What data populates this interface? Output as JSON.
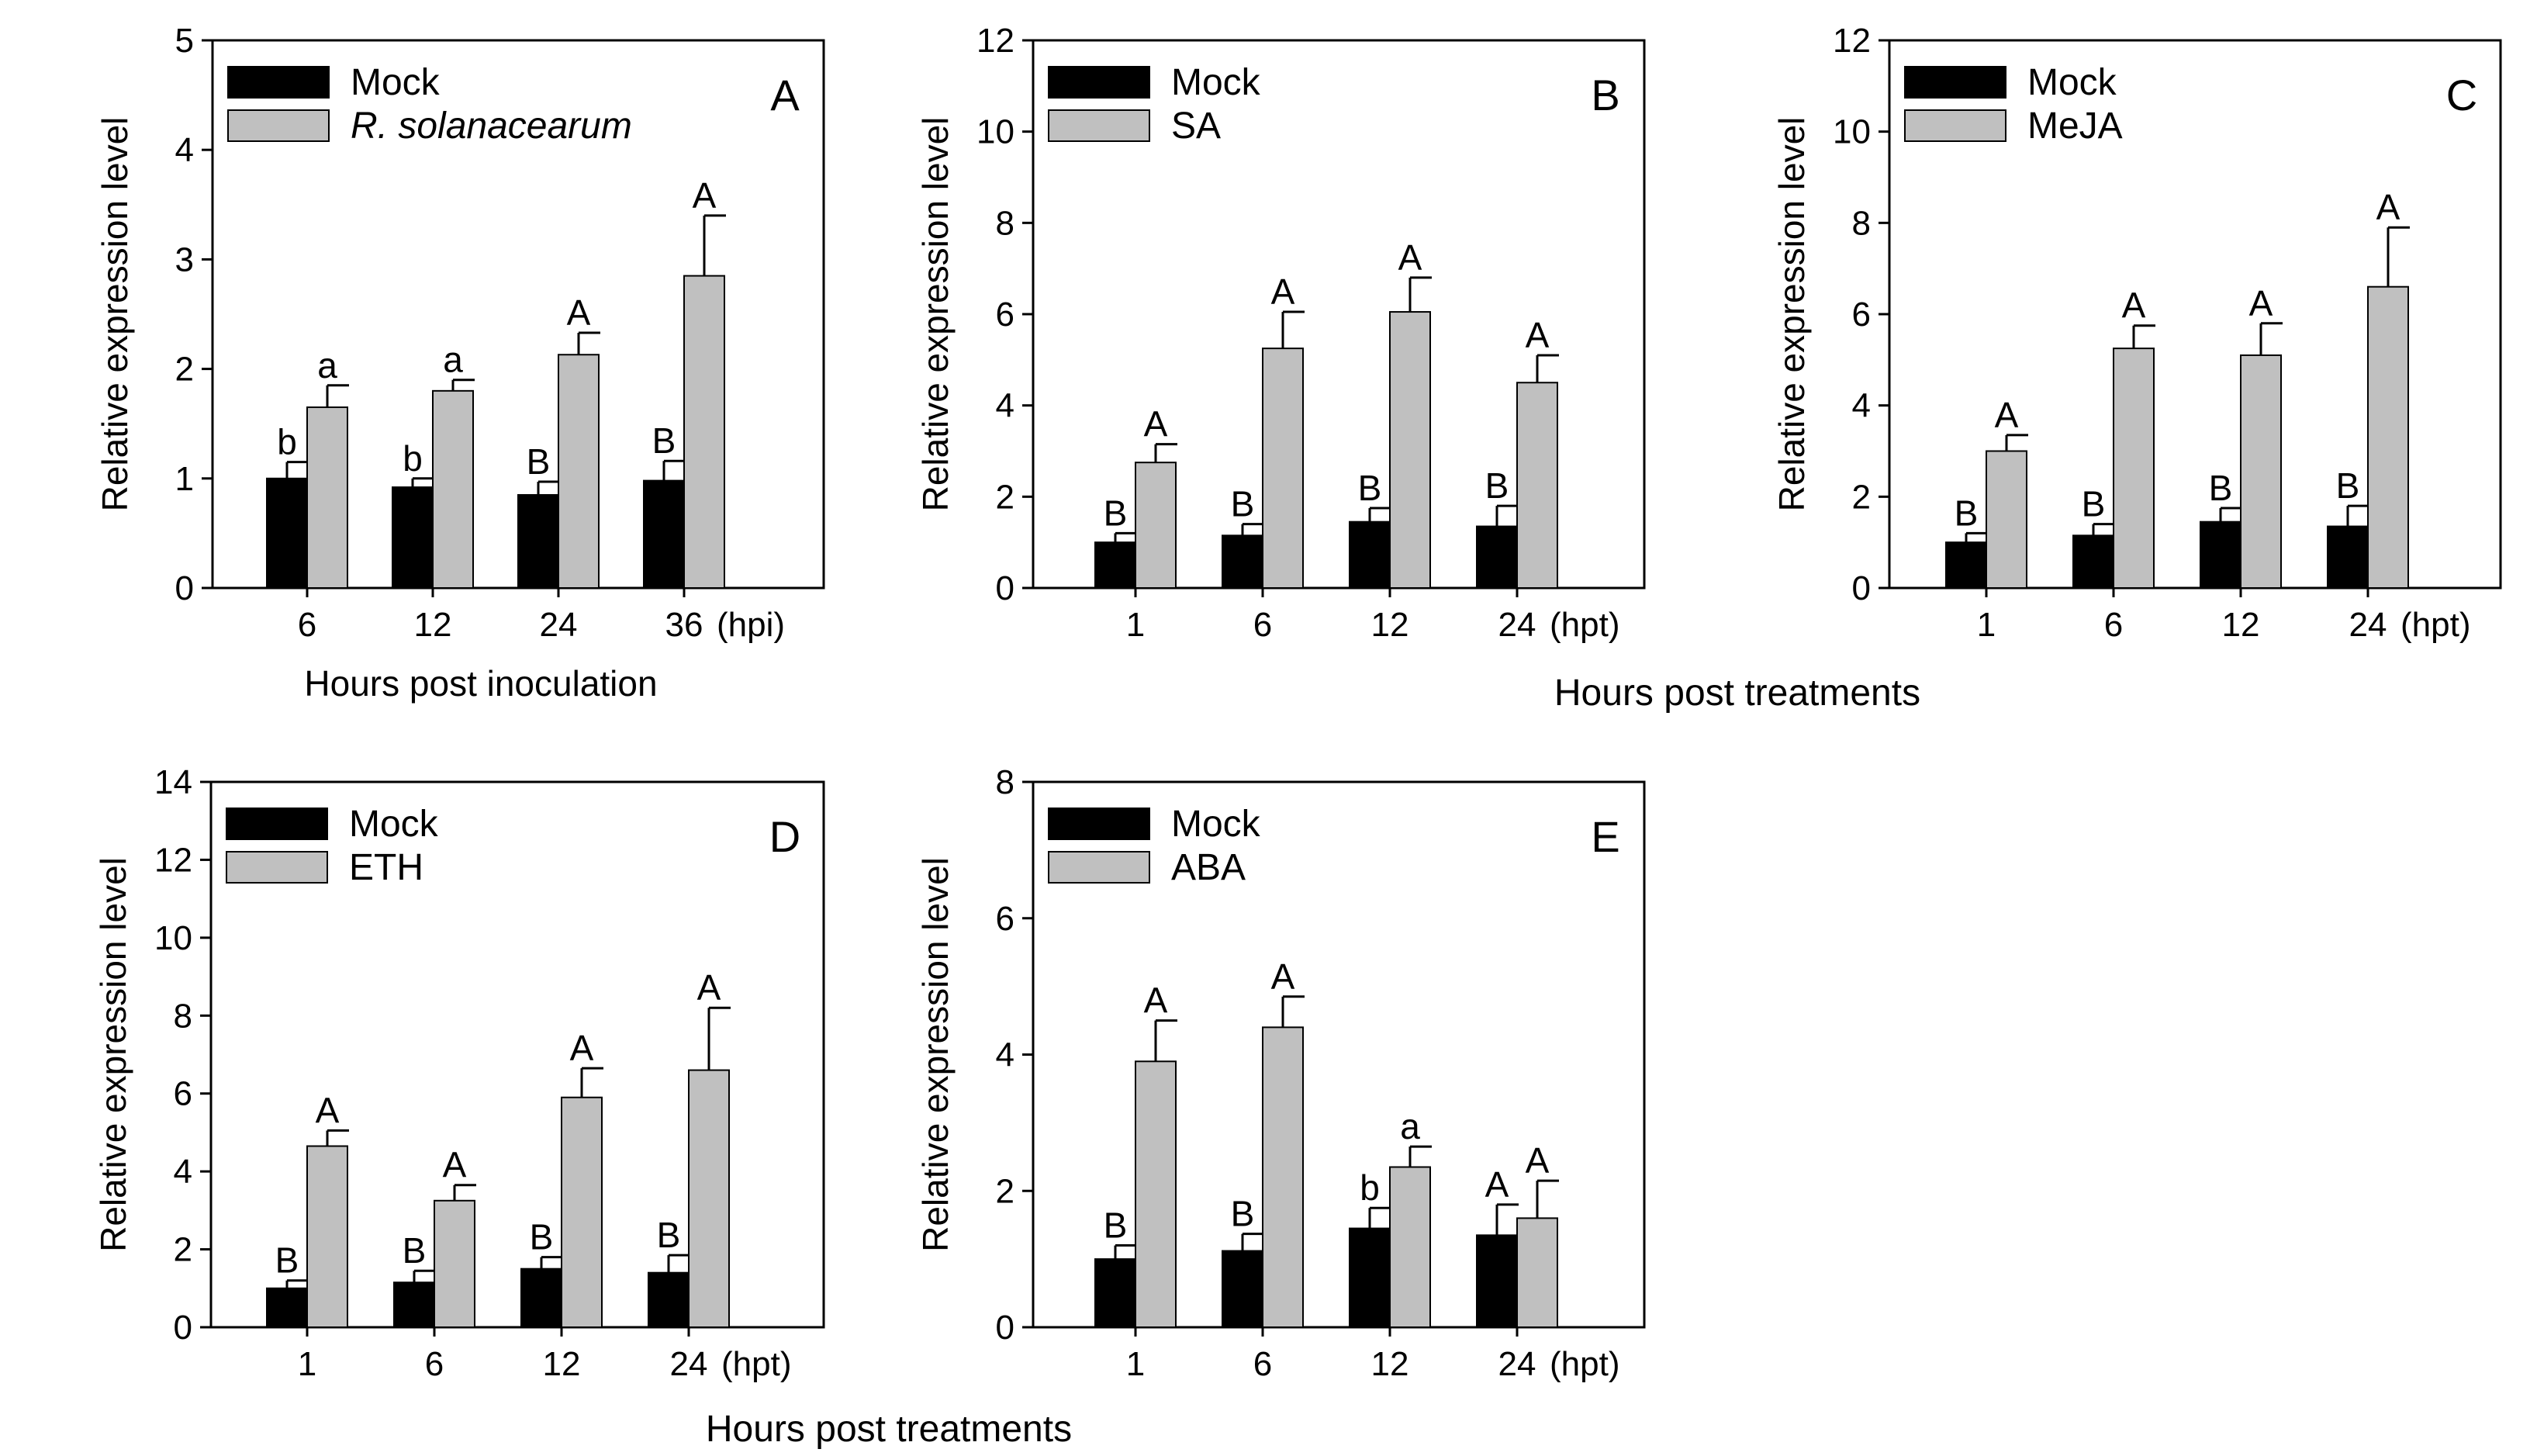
{
  "figure": {
    "shared_xlabels": [
      {
        "id": "top",
        "text": "Hours post treatments"
      },
      {
        "id": "bottom",
        "text": "Hours post treatments"
      }
    ]
  },
  "colors": {
    "mock": "#000000",
    "treatment": "#c0c0c0",
    "frame": "#000000",
    "text": "#000000"
  },
  "chart_data": [
    {
      "id": "A",
      "type": "bar",
      "panel_label": "A",
      "ylabel": "Relative expression level",
      "xlabel": "Hours post inoculation",
      "ylim": [
        0,
        5
      ],
      "yticks": [
        0,
        1,
        2,
        3,
        4,
        5
      ],
      "categories": [
        "6",
        "12",
        "24",
        "36"
      ],
      "unit": "(hpi)",
      "legend_position": "top-left",
      "series": [
        {
          "name": "Mock",
          "italic": false,
          "values": [
            1.0,
            0.92,
            0.85,
            0.98
          ],
          "errors": [
            0.15,
            0.08,
            0.12,
            0.18
          ],
          "labels": [
            "b",
            "b",
            "B",
            "B"
          ]
        },
        {
          "name": "R. solanacearum",
          "italic": true,
          "values": [
            1.65,
            1.8,
            2.13,
            2.85
          ],
          "errors": [
            0.2,
            0.1,
            0.2,
            0.55
          ],
          "labels": [
            "a",
            "a",
            "A",
            "A"
          ]
        }
      ]
    },
    {
      "id": "B",
      "type": "bar",
      "panel_label": "B",
      "ylabel": "Relative expression level",
      "xlabel": "",
      "ylim": [
        0,
        12
      ],
      "yticks": [
        0,
        2,
        4,
        6,
        8,
        10,
        12
      ],
      "categories": [
        "1",
        "6",
        "12",
        "24"
      ],
      "unit": "(hpt)",
      "legend_position": "top-left",
      "series": [
        {
          "name": "Mock",
          "italic": false,
          "values": [
            1.0,
            1.15,
            1.45,
            1.35
          ],
          "errors": [
            0.2,
            0.25,
            0.3,
            0.45
          ],
          "labels": [
            "B",
            "B",
            "B",
            "B"
          ]
        },
        {
          "name": "SA",
          "italic": false,
          "values": [
            2.75,
            5.25,
            6.05,
            4.5
          ],
          "errors": [
            0.4,
            0.8,
            0.75,
            0.6
          ],
          "labels": [
            "A",
            "A",
            "A",
            "A"
          ]
        }
      ]
    },
    {
      "id": "C",
      "type": "bar",
      "panel_label": "C",
      "ylabel": "Relative expression level",
      "xlabel": "",
      "ylim": [
        0,
        12
      ],
      "yticks": [
        0,
        2,
        4,
        6,
        8,
        10,
        12
      ],
      "categories": [
        "1",
        "6",
        "12",
        "24"
      ],
      "unit": "(hpt)",
      "legend_position": "top-left",
      "series": [
        {
          "name": "Mock",
          "italic": false,
          "values": [
            1.0,
            1.15,
            1.45,
            1.35
          ],
          "errors": [
            0.2,
            0.25,
            0.3,
            0.45
          ],
          "labels": [
            "B",
            "B",
            "B",
            "B"
          ]
        },
        {
          "name": "MeJA",
          "italic": false,
          "values": [
            3.0,
            5.25,
            5.1,
            6.6
          ],
          "errors": [
            0.35,
            0.5,
            0.7,
            1.3
          ],
          "labels": [
            "A",
            "A",
            "A",
            "A"
          ]
        }
      ]
    },
    {
      "id": "D",
      "type": "bar",
      "panel_label": "D",
      "ylabel": "Relative expression level",
      "xlabel": "",
      "ylim": [
        0,
        14
      ],
      "yticks": [
        0,
        2,
        4,
        6,
        8,
        10,
        12,
        14
      ],
      "categories": [
        "1",
        "6",
        "12",
        "24"
      ],
      "unit": "(hpt)",
      "legend_position": "top-left",
      "series": [
        {
          "name": "Mock",
          "italic": false,
          "values": [
            1.0,
            1.15,
            1.5,
            1.4
          ],
          "errors": [
            0.2,
            0.3,
            0.3,
            0.45
          ],
          "labels": [
            "B",
            "B",
            "B",
            "B"
          ]
        },
        {
          "name": "ETH",
          "italic": false,
          "values": [
            4.65,
            3.25,
            5.9,
            6.6
          ],
          "errors": [
            0.4,
            0.4,
            0.75,
            1.6
          ],
          "labels": [
            "A",
            "A",
            "A",
            "A"
          ]
        }
      ]
    },
    {
      "id": "E",
      "type": "bar",
      "panel_label": "E",
      "ylabel": "Relative expression level",
      "xlabel": "",
      "ylim": [
        0,
        8
      ],
      "yticks": [
        0,
        2,
        4,
        6,
        8
      ],
      "categories": [
        "1",
        "6",
        "12",
        "24"
      ],
      "unit": "(hpt)",
      "legend_position": "top-left",
      "series": [
        {
          "name": "Mock",
          "italic": false,
          "values": [
            1.0,
            1.12,
            1.45,
            1.35
          ],
          "errors": [
            0.2,
            0.25,
            0.3,
            0.45
          ],
          "labels": [
            "B",
            "B",
            "b",
            "A"
          ]
        },
        {
          "name": "ABA",
          "italic": false,
          "values": [
            3.9,
            4.4,
            2.35,
            1.6
          ],
          "errors": [
            0.6,
            0.45,
            0.3,
            0.55
          ],
          "labels": [
            "A",
            "A",
            "a",
            "A"
          ]
        }
      ]
    }
  ]
}
